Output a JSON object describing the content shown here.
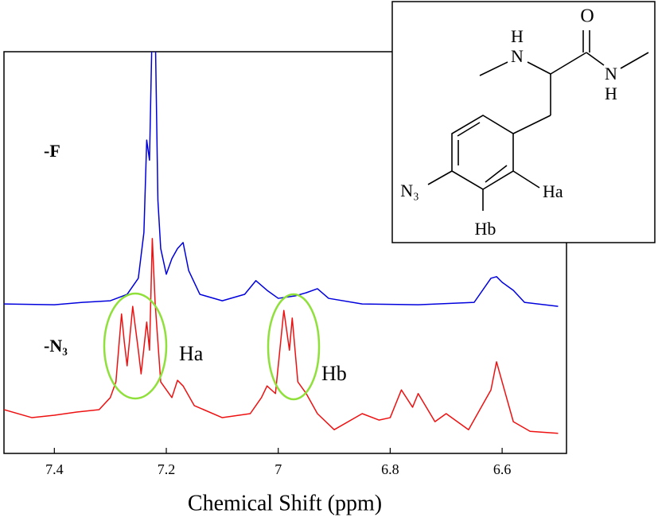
{
  "chart_data": {
    "type": "line",
    "x_label": "Chemical Shift (ppm)",
    "xlim": [
      7.49,
      6.485
    ],
    "xticks": [
      7.4,
      7.2,
      7,
      6.8,
      6.6
    ],
    "ylim": [
      0,
      100
    ],
    "grid": false,
    "series": [
      {
        "name": "-F",
        "color": "#0000dd",
        "x": [
          7.49,
          7.4,
          7.35,
          7.3,
          7.27,
          7.25,
          7.24,
          7.235,
          7.23,
          7.225,
          7.22,
          7.215,
          7.21,
          7.2,
          7.19,
          7.18,
          7.17,
          7.16,
          7.14,
          7.1,
          7.06,
          7.04,
          7.02,
          7.0,
          6.97,
          6.95,
          6.93,
          6.91,
          6.85,
          6.75,
          6.65,
          6.62,
          6.61,
          6.6,
          6.58,
          6.56,
          6.5
        ],
        "values": [
          37.2,
          37,
          37.6,
          38,
          39.6,
          43.6,
          55,
          78,
          73,
          108,
          108,
          63,
          51,
          44.6,
          48.5,
          51,
          52.5,
          45.5,
          39.6,
          38,
          39.6,
          43,
          40.6,
          38.6,
          39.2,
          40,
          41,
          38.6,
          37.2,
          37,
          37.6,
          43.6,
          44,
          42.6,
          40.6,
          37.6,
          36.6
        ]
      },
      {
        "name": "-N₃",
        "color": "#ee1111",
        "x": [
          7.49,
          7.44,
          7.4,
          7.36,
          7.32,
          7.3,
          7.29,
          7.28,
          7.275,
          7.27,
          7.26,
          7.25,
          7.245,
          7.235,
          7.23,
          7.225,
          7.22,
          7.21,
          7.19,
          7.18,
          7.17,
          7.15,
          7.1,
          7.05,
          7.03,
          7.02,
          7.005,
          6.99,
          6.98,
          6.975,
          6.965,
          6.95,
          6.93,
          6.9,
          6.85,
          6.82,
          6.8,
          6.78,
          6.76,
          6.75,
          6.72,
          6.7,
          6.66,
          6.62,
          6.61,
          6.6,
          6.58,
          6.55,
          6.5
        ],
        "values": [
          10.9,
          8.9,
          9.5,
          10.3,
          10.9,
          13.9,
          17.8,
          34.7,
          27.7,
          21.8,
          36.6,
          25.7,
          19.8,
          32.7,
          25.7,
          53.5,
          37.6,
          17.8,
          13.9,
          18.2,
          16.8,
          11.9,
          8.9,
          9.9,
          13.9,
          16.8,
          14.9,
          35.6,
          25.7,
          33.7,
          17.8,
          14.9,
          9.9,
          5.9,
          9.9,
          8.3,
          8.9,
          15.8,
          11.5,
          14.9,
          7.9,
          9.9,
          5.9,
          15.8,
          22.8,
          17.8,
          7.9,
          5.5,
          5
        ]
      }
    ],
    "annotations": [
      "Ha",
      "Hb"
    ],
    "inset_labels": [
      "O",
      "H",
      "N",
      "N",
      "H",
      "N₃",
      "Ha",
      "Hb"
    ]
  }
}
